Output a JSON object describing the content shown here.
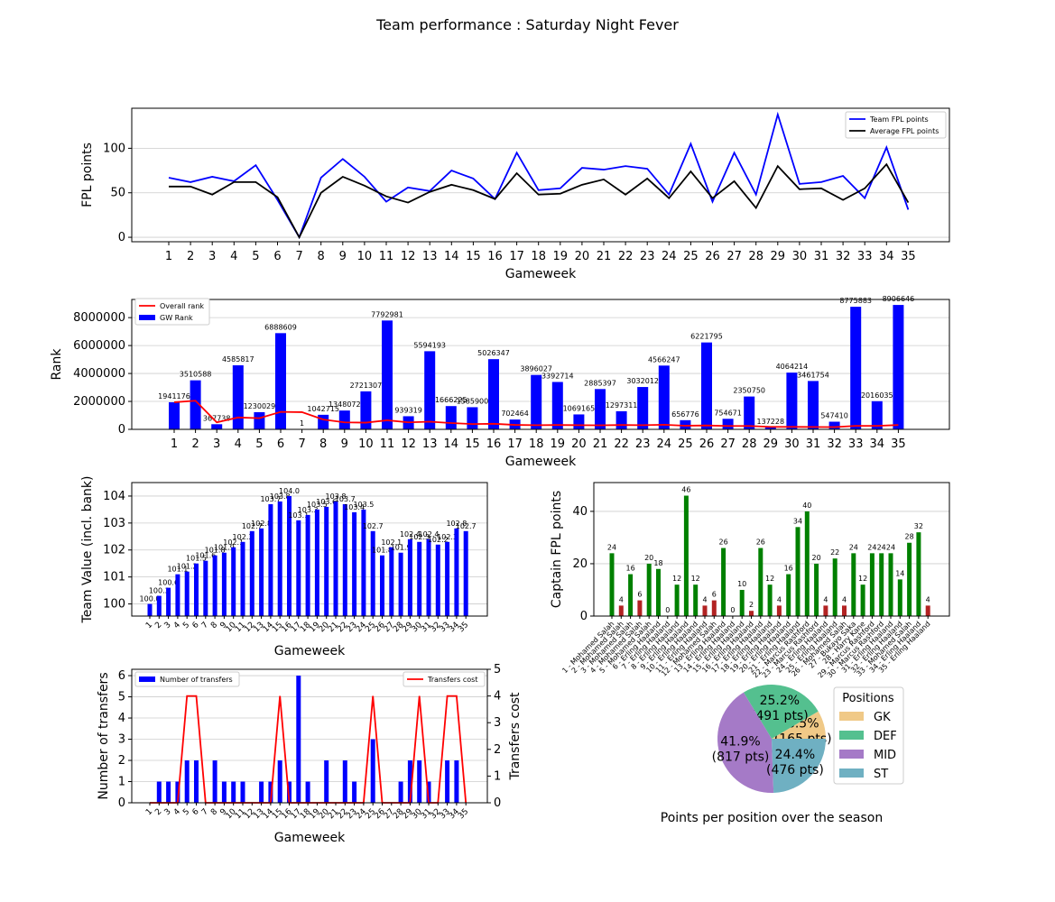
{
  "figure": {
    "title": "Team performance : Saturday Night Fever"
  },
  "chart_data": [
    {
      "id": "fpl_points",
      "type": "line",
      "title": "",
      "xlabel": "Gameweek",
      "ylabel": "FPL points",
      "x": [
        1,
        2,
        3,
        4,
        5,
        6,
        7,
        8,
        9,
        10,
        11,
        12,
        13,
        14,
        15,
        16,
        17,
        18,
        19,
        20,
        21,
        22,
        23,
        24,
        25,
        26,
        27,
        28,
        29,
        30,
        31,
        32,
        33,
        34,
        35
      ],
      "ylim": [
        -5,
        145
      ],
      "yticks": [
        0,
        50,
        100
      ],
      "grid": "y",
      "legend_position": "upper right",
      "series": [
        {
          "name": "Team FPL points",
          "color": "#0000ff",
          "values": [
            67,
            62,
            68,
            63,
            81,
            42,
            0,
            67,
            88,
            68,
            40,
            56,
            52,
            75,
            66,
            43,
            95,
            53,
            55,
            78,
            76,
            80,
            77,
            48,
            105,
            40,
            95,
            48,
            138,
            60,
            62,
            69,
            44,
            101,
            31
          ]
        },
        {
          "name": "Average FPL points",
          "color": "#000000",
          "values": [
            57,
            57,
            48,
            62,
            62,
            45,
            0,
            50,
            68,
            58,
            46,
            39,
            51,
            59,
            53,
            43,
            72,
            48,
            49,
            59,
            65,
            48,
            66,
            44,
            74,
            44,
            63,
            33,
            80,
            54,
            55,
            42,
            55,
            82,
            39
          ]
        }
      ]
    },
    {
      "id": "rank",
      "type": "bar",
      "title": "",
      "xlabel": "Gameweek",
      "ylabel": "Rank",
      "x": [
        1,
        2,
        3,
        4,
        5,
        6,
        7,
        8,
        9,
        10,
        11,
        12,
        13,
        14,
        15,
        16,
        17,
        18,
        19,
        20,
        21,
        22,
        23,
        24,
        25,
        26,
        27,
        28,
        29,
        30,
        31,
        32,
        33,
        34,
        35
      ],
      "ylim": [
        0,
        9300000
      ],
      "yticks": [
        0,
        2000000,
        4000000,
        6000000,
        8000000
      ],
      "grid": "y",
      "legend_position": "upper left",
      "series": [
        {
          "name": "GW Rank",
          "kind": "bar",
          "color": "#0000ff",
          "values": [
            1941176,
            3510588,
            367738,
            4585817,
            1230029,
            6888609,
            1,
            1042715,
            1348072,
            2721307,
            7792981,
            939319,
            5594193,
            1666225,
            1585900,
            5026347,
            702464,
            3896027,
            3392714,
            1069165,
            2885397,
            1297311,
            3032012,
            4566247,
            656776,
            6221795,
            754671,
            2350750,
            137228,
            4064214,
            3461754,
            547410,
            8775883,
            2016035,
            8906646
          ],
          "labels": [
            "1941176",
            "3510588",
            "367738",
            "4585817",
            "1230029",
            "6888609",
            "1",
            "1042715",
            "1348072",
            "2721307",
            "7792981",
            "939319",
            "5594193",
            "1666225",
            "1585900",
            "5026347",
            "702464",
            "3896027",
            "3392714",
            "1069165",
            "2885397",
            "1297311",
            "3032012",
            "4566247",
            "656776",
            "6221795",
            "754671",
            "2350750",
            "137228",
            "4064214",
            "3461754",
            "547410",
            "8775883",
            "2016035",
            "8906646"
          ]
        },
        {
          "name": "Overall rank",
          "kind": "line",
          "color": "#ff0000",
          "values": [
            1941176,
            2050000,
            500000,
            850000,
            800000,
            1250000,
            1230000,
            700000,
            500000,
            480000,
            650000,
            500000,
            550000,
            450000,
            380000,
            400000,
            320000,
            300000,
            310000,
            300000,
            290000,
            310000,
            300000,
            330000,
            260000,
            280000,
            240000,
            240000,
            180000,
            180000,
            170000,
            160000,
            250000,
            250000,
            310000
          ]
        }
      ]
    },
    {
      "id": "team_value",
      "type": "bar",
      "title": "",
      "xlabel": "Gameweek",
      "ylabel": "Team Value (incl. bank)",
      "categories": [
        "1",
        "2",
        "3",
        "4",
        "5",
        "6",
        "7",
        "8",
        "9",
        "10",
        "11",
        "12",
        "13",
        "14",
        "15",
        "16",
        "17",
        "18",
        "19",
        "20",
        "21",
        "22",
        "23",
        "24",
        "25",
        "26",
        "27",
        "28",
        "29",
        "30",
        "31",
        "32",
        "33",
        "34",
        "35"
      ],
      "ylim": [
        99.55,
        104.5
      ],
      "yticks": [
        100,
        101,
        102,
        103,
        104
      ],
      "grid": "y",
      "series": [
        {
          "name": "",
          "color": "#0000ff",
          "values": [
            100.0,
            100.3,
            100.6,
            101.1,
            101.2,
            101.5,
            101.6,
            101.8,
            101.9,
            102.1,
            102.3,
            102.7,
            102.8,
            103.7,
            103.8,
            104.0,
            103.1,
            103.3,
            103.5,
            103.6,
            103.8,
            103.7,
            103.4,
            103.5,
            102.7,
            101.8,
            102.1,
            101.9,
            102.4,
            102.3,
            102.4,
            102.2,
            102.3,
            102.8,
            102.7
          ],
          "labels": [
            "100.0",
            "100.3",
            "100.6",
            "101.1",
            "101.2",
            "101.5",
            "101.6",
            "101.8",
            "101.9",
            "102.1",
            "102.3",
            "102.7",
            "102.8",
            "103.7",
            "103.8",
            "104.0",
            "103.1",
            "103.3",
            "103.5",
            "103.6",
            "103.8",
            "103.7",
            "103.4",
            "103.5",
            "102.7",
            "101.8",
            "102.1",
            "101.9",
            "102.4",
            "102.3",
            "102.4",
            "102.2",
            "102.3",
            "102.8",
            "102.7"
          ]
        }
      ]
    },
    {
      "id": "captain",
      "type": "bar",
      "title": "",
      "xlabel": "",
      "ylabel": "Captain FPL points",
      "categories": [
        "1 - Mohamed Salah",
        "2 - Mohamed Salah",
        "3 - Mohamed Salah",
        "4 - Mohamed Salah",
        "5 - Mohamed Salah",
        "6 - Erling Haaland",
        "7 - Erling Haaland",
        "8 - Erling Haaland",
        "9 - Erling Haaland",
        "10 - Erling Haaland",
        "11 - Erling Haaland",
        "12 - Mohamed Salah",
        "13 - Erling Haaland",
        "14 - Erling Haaland",
        "15 - Erling Haaland",
        "16 - Erling Haaland",
        "17 - Erling Haaland",
        "18 - Erling Haaland",
        "19 - Erling Haaland",
        "20 - Erling Haaland",
        "21 - Erling Haaland",
        "22 - Marcus Rashford",
        "23 - Marcus Rashford",
        "24 - Erling Haaland",
        "25 - Erling Haaland",
        "26 - Mohamed Salah",
        "27 - Bukayo Saka",
        "28 - Harry Kane",
        "29 - Marcus Rashford",
        "30 - Marcus Rashford",
        "31 - Erling Haaland",
        "32 - Erling Haaland",
        "33 - Mohamed Salah",
        "34 - Erling Haaland",
        "35 - Erling Haaland"
      ],
      "ylim": [
        0,
        51
      ],
      "yticks": [
        0,
        20,
        40
      ],
      "grid": "y",
      "series": [
        {
          "name": "",
          "colors_note": "green = captain played, red = captain blanked",
          "values": [
            24,
            4,
            16,
            6,
            20,
            18,
            0,
            12,
            46,
            12,
            4,
            6,
            26,
            0,
            10,
            2,
            26,
            12,
            4,
            16,
            34,
            40,
            20,
            4,
            22,
            4,
            24,
            12,
            24,
            24,
            24,
            14,
            28,
            32,
            4
          ],
          "bar_colors": [
            "#008000",
            "#b22222",
            "#008000",
            "#b22222",
            "#008000",
            "#008000",
            "#008000",
            "#008000",
            "#008000",
            "#008000",
            "#b22222",
            "#b22222",
            "#008000",
            "#008000",
            "#008000",
            "#b22222",
            "#008000",
            "#008000",
            "#b22222",
            "#008000",
            "#008000",
            "#008000",
            "#008000",
            "#b22222",
            "#008000",
            "#b22222",
            "#008000",
            "#008000",
            "#008000",
            "#008000",
            "#008000",
            "#008000",
            "#008000",
            "#008000",
            "#b22222"
          ],
          "labels": [
            "24",
            "4",
            "16",
            "6",
            "20",
            "18",
            "0",
            "12",
            "46",
            "12",
            "4",
            "6",
            "26",
            "0",
            "10",
            "2",
            "26",
            "12",
            "4",
            "16",
            "34",
            "40",
            "20",
            "4",
            "22",
            "4",
            "24",
            "12",
            "24",
            "24",
            "24",
            "14",
            "28",
            "32",
            "4"
          ]
        }
      ]
    },
    {
      "id": "transfers",
      "type": "bar",
      "title": "",
      "xlabel": "Gameweek",
      "ylabel": "Number of transfers",
      "ylabel_right": "Transfers cost",
      "categories": [
        "1",
        "2",
        "3",
        "4",
        "5",
        "6",
        "7",
        "8",
        "9",
        "10",
        "11",
        "12",
        "13",
        "14",
        "15",
        "16",
        "17",
        "18",
        "19",
        "20",
        "21",
        "22",
        "23",
        "24",
        "25",
        "26",
        "27",
        "28",
        "29",
        "30",
        "31",
        "32",
        "33",
        "34",
        "35"
      ],
      "ylim": [
        0,
        6.3
      ],
      "yticks": [
        0,
        1,
        2,
        3,
        4,
        5,
        6
      ],
      "ylim_right": [
        0,
        5
      ],
      "yticks_right": [
        0,
        1,
        2,
        3,
        4,
        5
      ],
      "grid": "y",
      "legend_position": "upper left / upper right",
      "series": [
        {
          "name": "Number of transfers",
          "kind": "bar",
          "color": "#0000ff",
          "values": [
            0,
            1,
            1,
            1,
            2,
            2,
            0,
            2,
            1,
            1,
            1,
            0,
            1,
            1,
            2,
            1,
            6,
            1,
            0,
            2,
            0,
            2,
            1,
            0,
            3,
            0,
            0,
            1,
            2,
            2,
            1,
            0,
            2,
            2,
            0
          ]
        },
        {
          "name": "Transfers cost",
          "kind": "line",
          "axis": "right",
          "color": "#ff0000",
          "values": [
            0,
            0,
            0,
            0,
            4,
            4,
            0,
            0,
            0,
            0,
            0,
            0,
            0,
            0,
            4,
            0,
            0,
            0,
            0,
            0,
            0,
            0,
            0,
            0,
            4,
            0,
            0,
            0,
            0,
            4,
            0,
            0,
            4,
            4,
            0
          ]
        }
      ]
    },
    {
      "id": "positions",
      "type": "pie",
      "title": "Points per position over the season",
      "legend_title": "Positions",
      "legend_position": "right",
      "slices": [
        {
          "name": "GK",
          "value": 165,
          "percent": "8.5%",
          "label": "(165 pts)",
          "color": "#f0c987"
        },
        {
          "name": "DEF",
          "value": 491,
          "percent": "25.2%",
          "label": "(491 pts)",
          "color": "#54c08f"
        },
        {
          "name": "MID",
          "value": 817,
          "percent": "41.9%",
          "label": "(817 pts)",
          "color": "#a57ac7"
        },
        {
          "name": "ST",
          "value": 476,
          "percent": "24.4%",
          "label": "(476 pts)",
          "color": "#6fb0c2"
        }
      ]
    }
  ]
}
